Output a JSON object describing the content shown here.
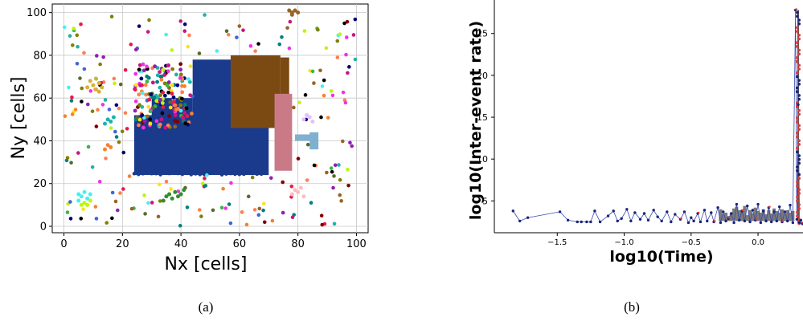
{
  "chart_data": [
    {
      "id": "a",
      "type": "scatter",
      "caption": "(a)",
      "xlabel": "Nx [cells]",
      "ylabel": "Ny [cells]",
      "xlim": [
        -4,
        104
      ],
      "ylim": [
        -3,
        104
      ],
      "xticks": [
        0,
        20,
        40,
        60,
        80,
        100
      ],
      "yticks": [
        0,
        20,
        40,
        60,
        80,
        100
      ],
      "grid": true,
      "colors": {
        "main_cluster": "#1a3a8c",
        "brown_cluster": "#7a4a12",
        "pink_cluster": "#c97a86",
        "light_blue_cluster": "#7fb0d0",
        "palette": [
          "#e6194b",
          "#3cb44b",
          "#ffe119",
          "#4363d8",
          "#f58231",
          "#911eb4",
          "#46f0f0",
          "#f032e6",
          "#bcf60c",
          "#fabebe",
          "#008080",
          "#e6beff",
          "#9a6324",
          "#800000",
          "#aaffc3",
          "#808000",
          "#000075",
          "#000000",
          "#a9a9a9",
          "#ff7f50",
          "#20b2aa",
          "#9acd32",
          "#c71585",
          "#556b2f"
        ]
      },
      "regions": [
        {
          "name": "main",
          "color": "#1a3a8c",
          "rects": [
            [
              24,
              24,
              70,
              52
            ],
            [
              44,
              50,
              60,
              78
            ],
            [
              30,
              50,
              44,
              60
            ]
          ]
        },
        {
          "name": "brown",
          "color": "#7a4a12",
          "rects": [
            [
              57,
              46,
              74,
              80
            ],
            [
              74,
              60,
              77,
              79
            ]
          ]
        },
        {
          "name": "pink",
          "color": "#c97a86",
          "rects": [
            [
              72,
              26,
              78,
              62
            ]
          ]
        },
        {
          "name": "light-blue",
          "color": "#7fb0d0",
          "rects": [
            [
              79,
              40,
              85,
              43
            ],
            [
              84,
              36,
              87,
              44
            ]
          ]
        }
      ],
      "clusters": [
        {
          "color": "#d4b13a",
          "points": [
            [
              8,
              65
            ],
            [
              10,
              66
            ],
            [
              11,
              64
            ],
            [
              12,
              67
            ],
            [
              13,
              65
            ],
            [
              9,
              68
            ],
            [
              11,
              69
            ],
            [
              12,
              63
            ]
          ]
        },
        {
          "color": "#2f8f2f",
          "points": [
            [
              35,
              14
            ],
            [
              36,
              15
            ],
            [
              37,
              13
            ],
            [
              38,
              16
            ],
            [
              39,
              14
            ],
            [
              40,
              15
            ],
            [
              41,
              17
            ],
            [
              34,
              12
            ]
          ]
        },
        {
          "color": "#46f0f0",
          "points": [
            [
              5,
              15
            ],
            [
              6,
              14
            ],
            [
              7,
              16
            ],
            [
              8,
              13
            ],
            [
              9,
              15
            ],
            [
              5,
              12
            ]
          ]
        },
        {
          "color": "#bcf60c",
          "points": [
            [
              6,
              10
            ],
            [
              7,
              11
            ],
            [
              8,
              10
            ],
            [
              9,
              12
            ]
          ]
        },
        {
          "color": "#fabebe",
          "points": [
            [
              78,
              15
            ],
            [
              79,
              17
            ],
            [
              80,
              16
            ],
            [
              81,
              18
            ],
            [
              82,
              14
            ]
          ]
        },
        {
          "color": "#e6beff",
          "points": [
            [
              82,
              50
            ],
            [
              83,
              52
            ],
            [
              84,
              51
            ],
            [
              85,
              49
            ]
          ]
        },
        {
          "color": "#9a6324",
          "points": [
            [
              77,
              101
            ],
            [
              78,
              100
            ],
            [
              79,
              101
            ],
            [
              80,
              100
            ],
            [
              78,
              99
            ]
          ]
        },
        {
          "color": "#20b2aa",
          "points": [
            [
              14,
              48
            ],
            [
              15,
              50
            ],
            [
              16,
              49
            ],
            [
              17,
              51
            ]
          ]
        },
        {
          "color": "#f58231",
          "points": [
            [
              14,
              36
            ],
            [
              15,
              38
            ],
            [
              16,
              37
            ]
          ]
        }
      ],
      "scatter_colors": [
        "#e6194b",
        "#3cb44b",
        "#ffe119",
        "#4363d8",
        "#f58231",
        "#911eb4",
        "#46f0f0",
        "#f032e6",
        "#bcf60c",
        "#008080",
        "#9a6324",
        "#800000",
        "#808000",
        "#000075",
        "#000000",
        "#c71585",
        "#556b2f",
        "#ff7f50",
        "#20b2aa"
      ]
    },
    {
      "id": "b",
      "type": "line",
      "caption": "(b)",
      "xlabel": "log10(Time)",
      "ylabel": "log10(Inter-event rate)",
      "xlim": [
        -1.97,
        0.36
      ],
      "ylim": [
        1.2,
        29
      ],
      "xticks": [
        -1.5,
        -1.0,
        -0.5,
        0.0
      ],
      "xtick_labels": [
        "−1.5",
        "−1.0",
        "−0.5",
        "0.0"
      ],
      "yticks": [
        5,
        10,
        15,
        20,
        25
      ],
      "colors": {
        "line": "#3949ab",
        "marker": "#1a237e",
        "highlight": "#e53935",
        "band": "#7a7a7a"
      },
      "x": [
        -1.83,
        -1.78,
        -1.72,
        -1.48,
        -1.42,
        -1.35,
        -1.32,
        -1.28,
        -1.25,
        -1.22,
        -1.18,
        -1.12,
        -1.08,
        -1.05,
        -1.02,
        -0.98,
        -0.95,
        -0.92,
        -0.88,
        -0.85,
        -0.82,
        -0.78,
        -0.75,
        -0.72,
        -0.68,
        -0.65,
        -0.62,
        -0.58,
        -0.55,
        -0.52,
        -0.5,
        -0.48,
        -0.45,
        -0.43,
        -0.4,
        -0.38,
        -0.35,
        -0.33,
        -0.3,
        -0.28,
        -0.26,
        -0.24,
        -0.22,
        -0.2,
        -0.18,
        -0.16,
        -0.14,
        -0.12,
        -0.1,
        -0.08,
        -0.06,
        -0.04,
        -0.02,
        0.0,
        0.02,
        0.04,
        0.06,
        0.08,
        0.1,
        0.12,
        0.14,
        0.16,
        0.18,
        0.2,
        0.22,
        0.24,
        0.26,
        0.28,
        0.29,
        0.3,
        0.31,
        0.32,
        0.33,
        0.34,
        0.35
      ],
      "y": [
        3.8,
        2.6,
        3.0,
        3.7,
        2.7,
        2.5,
        2.5,
        2.5,
        2.5,
        3.8,
        2.5,
        3.2,
        3.8,
        2.6,
        2.9,
        4.0,
        2.6,
        3.6,
        2.8,
        3.5,
        2.7,
        3.9,
        3.1,
        2.6,
        3.7,
        2.5,
        3.4,
        2.8,
        3.7,
        2.4,
        3.0,
        2.6,
        3.5,
        2.5,
        3.9,
        2.6,
        3.6,
        2.5,
        4.2,
        2.4,
        3.7,
        2.6,
        2.9,
        3.5,
        2.4,
        4.6,
        2.7,
        3.8,
        2.6,
        4.4,
        2.5,
        3.9,
        2.7,
        4.6,
        2.4,
        3.8,
        2.6,
        4.2,
        2.5,
        3.7,
        2.6,
        4.3,
        2.5,
        3.7,
        2.6,
        4.5,
        2.4,
        27.8,
        2.8,
        16.5,
        2.4,
        2.7,
        2.3,
        2.2,
        2.4
      ],
      "band_x": [
        -0.28,
        -0.26,
        -0.24,
        -0.22,
        -0.2,
        -0.18,
        -0.16,
        -0.14,
        -0.12,
        -0.1,
        -0.08,
        -0.06,
        -0.04,
        -0.02,
        0.0,
        0.02,
        0.04,
        0.06,
        0.08,
        0.1,
        0.12,
        0.14,
        0.16,
        0.18,
        0.2,
        0.22,
        0.24,
        0.26
      ],
      "band_lo": [
        2.6,
        2.6,
        2.6,
        2.6,
        2.6,
        2.7,
        2.6,
        2.6,
        2.6,
        2.6,
        2.6,
        2.6,
        2.6,
        2.6,
        2.6,
        2.6,
        2.6,
        2.6,
        2.6,
        2.6,
        2.6,
        2.6,
        2.6,
        2.6,
        2.6,
        2.6,
        2.6,
        2.6
      ],
      "band_hi": [
        4.0,
        3.4,
        3.6,
        3.2,
        3.5,
        4.1,
        4.3,
        3.9,
        3.7,
        4.4,
        3.3,
        3.9,
        3.5,
        4.2,
        3.8,
        3.6,
        4.0,
        3.4,
        3.9,
        3.5,
        4.1,
        3.8,
        3.6,
        4.0,
        3.5,
        3.9,
        3.6,
        3.8
      ],
      "spike_x": 0.3,
      "spike_lo": 2.3,
      "spike_hi": 27.8
    }
  ]
}
